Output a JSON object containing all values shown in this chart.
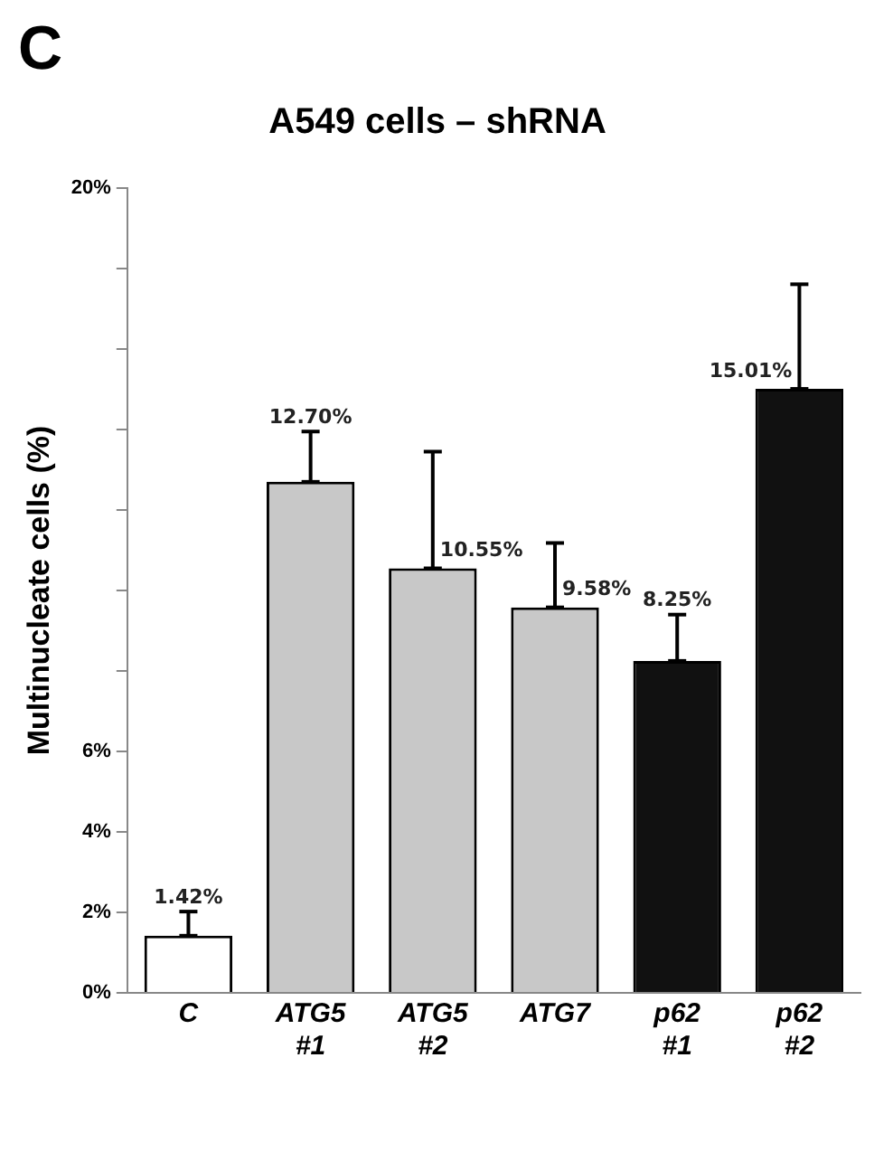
{
  "chart_data": {
    "type": "bar",
    "title": "A549 cells – shRNA",
    "ylabel": "Multinucleate cells (%)",
    "annotations": [
      "C"
    ],
    "categories": [
      "C",
      "ATG5 #1",
      "ATG5 #2",
      "ATG7",
      "p62 #1",
      "p62 #2"
    ],
    "values": [
      1.42,
      12.7,
      10.55,
      9.58,
      8.25,
      15.01
    ],
    "colors": [
      "#ffffff",
      "#c8c8c8",
      "#c8c8c8",
      "#c8c8c8",
      "#111111",
      "#111111"
    ],
    "errors": [
      [
        1.42,
        2.02
      ],
      [
        12.7,
        13.95
      ],
      [
        10.55,
        13.45
      ],
      [
        9.58,
        11.18
      ],
      [
        8.25,
        9.4
      ],
      [
        15.01,
        17.61
      ]
    ],
    "value_labels": [
      "1.42%",
      "12.70%",
      "10.55%",
      "9.58%",
      "8.25%",
      "15.01%"
    ],
    "ylim": [
      0,
      20
    ],
    "yticks": [
      {
        "value": 0,
        "label": "0%"
      },
      {
        "value": 2,
        "label": "2%"
      },
      {
        "value": 4,
        "label": "4%"
      },
      {
        "value": 6,
        "label": "6%"
      },
      {
        "value": 8,
        "label": null
      },
      {
        "value": 10,
        "label": null
      },
      {
        "value": 12,
        "label": null
      },
      {
        "value": 14,
        "label": null
      },
      {
        "value": 16,
        "label": null
      },
      {
        "value": 18,
        "label": null
      },
      {
        "value": 20,
        "label": "20%"
      }
    ],
    "grid": false,
    "legend": false
  }
}
